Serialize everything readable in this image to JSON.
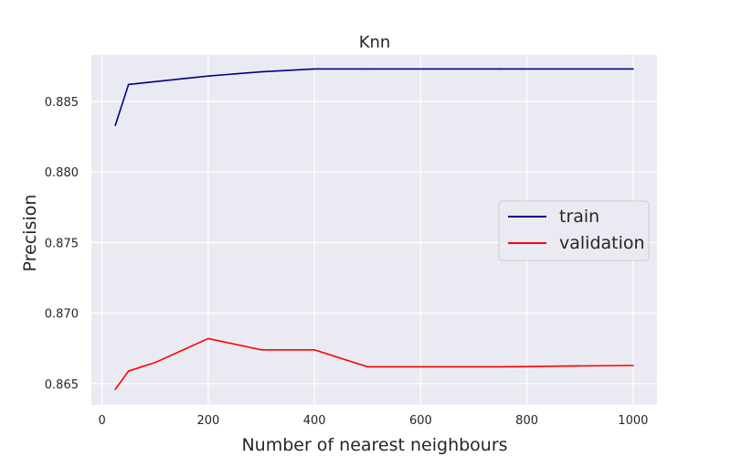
{
  "chart_data": {
    "type": "line",
    "title": "Knn",
    "xlabel": "Number of nearest neighbours",
    "ylabel": "Precision",
    "xlim": [
      -20,
      1045
    ],
    "ylim": [
      0.8635,
      0.8883
    ],
    "xticks": [
      0,
      200,
      400,
      600,
      800,
      1000
    ],
    "yticks": [
      0.865,
      0.87,
      0.875,
      0.88,
      0.885
    ],
    "ytick_labels": [
      "0.865",
      "0.870",
      "0.875",
      "0.880",
      "0.885"
    ],
    "grid": true,
    "legend_position": "center-right",
    "background_color": "#eaeaf2",
    "series": [
      {
        "name": "train",
        "color": "#00008b",
        "x": [
          25,
          50,
          100,
          200,
          300,
          400,
          500,
          750,
          1000
        ],
        "y": [
          0.8833,
          0.8862,
          0.8864,
          0.8868,
          0.8871,
          0.8873,
          0.8873,
          0.8873,
          0.8873
        ]
      },
      {
        "name": "validation",
        "color": "#ff0000",
        "x": [
          25,
          50,
          100,
          200,
          300,
          400,
          500,
          750,
          1000
        ],
        "y": [
          0.8646,
          0.8659,
          0.8665,
          0.8682,
          0.8674,
          0.8674,
          0.8662,
          0.8662,
          0.8663
        ]
      }
    ]
  }
}
